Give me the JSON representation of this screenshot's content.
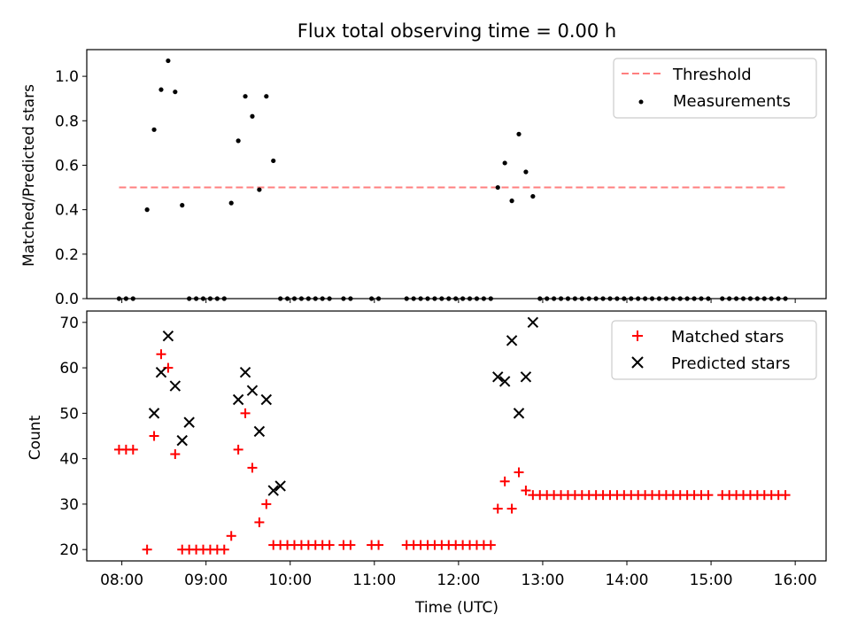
{
  "figure": {
    "title": "Flux total observing time = 0.00 h"
  },
  "chart_data": [
    {
      "type": "scatter",
      "ylabel": "Matched/Predicted stars",
      "xlabel": "",
      "ylim": [
        0,
        1.12
      ],
      "yticks": [
        0.0,
        0.2,
        0.4,
        0.6,
        0.8,
        1.0
      ],
      "ytick_labels": [
        "0.0",
        "0.2",
        "0.4",
        "0.6",
        "0.8",
        "1.0"
      ],
      "legend_position": "top-right",
      "threshold": {
        "name": "Threshold",
        "value": 0.5,
        "x_start": "07:58",
        "x_end": "15:55",
        "color": "#ff7f7f",
        "style": "dashed"
      },
      "series": [
        {
          "name": "Measurements",
          "marker": "dot",
          "color": "#000000",
          "x": [
            "07:58",
            "08:03",
            "08:08",
            "08:13",
            "08:18",
            "08:23",
            "08:28",
            "08:33",
            "08:38",
            "08:43",
            "08:48",
            "08:53",
            "08:58",
            "09:03",
            "09:08",
            "09:13",
            "09:18",
            "09:23",
            "09:28",
            "09:33",
            "09:38",
            "09:43",
            "09:48",
            "09:53",
            "09:58",
            "10:03",
            "10:08",
            "10:13",
            "10:18",
            "10:23",
            "10:28",
            "10:33",
            "10:38",
            "10:43",
            "10:48",
            "10:53",
            "10:58",
            "11:03",
            "11:08",
            "11:13",
            "11:18",
            "11:23",
            "11:28",
            "11:33",
            "11:38",
            "11:43",
            "11:48",
            "11:53",
            "11:58",
            "12:03",
            "12:08",
            "12:13",
            "12:18",
            "12:23",
            "12:28",
            "12:33",
            "12:38",
            "12:43",
            "12:48",
            "12:53",
            "12:58",
            "13:03",
            "13:08",
            "13:13",
            "13:18",
            "13:23",
            "13:28",
            "13:33",
            "13:38",
            "13:43",
            "13:48",
            "13:53",
            "13:58",
            "14:03",
            "14:08",
            "14:13",
            "14:18",
            "14:23",
            "14:28",
            "14:33",
            "14:38",
            "14:43",
            "14:48",
            "14:53",
            "14:58",
            "15:03",
            "15:08",
            "15:13",
            "15:18",
            "15:23",
            "15:28",
            "15:33",
            "15:38",
            "15:43",
            "15:48",
            "15:53"
          ],
          "y": [
            0,
            0,
            0,
            null,
            0.4,
            0.76,
            0.94,
            1.07,
            0.93,
            0.42,
            0,
            0,
            0,
            0,
            0,
            0,
            0.43,
            0.71,
            0.91,
            0.82,
            0.49,
            0.91,
            0.62,
            0,
            0,
            0,
            0,
            0,
            0,
            0,
            0,
            null,
            0,
            0,
            null,
            null,
            0,
            0,
            null,
            null,
            null,
            0,
            0,
            0,
            0,
            0,
            0,
            0,
            0,
            0,
            0,
            0,
            0,
            0,
            0.5,
            0.61,
            0.44,
            0.74,
            0.57,
            0.46,
            0,
            0,
            0,
            0,
            0,
            0,
            0,
            0,
            0,
            0,
            0,
            0,
            0,
            0,
            0,
            0,
            0,
            0,
            0,
            0,
            0,
            0,
            0,
            0,
            0,
            null,
            0,
            0,
            0,
            0,
            0,
            0,
            0,
            0,
            0,
            0
          ]
        }
      ]
    },
    {
      "type": "scatter",
      "xlabel": "Time (UTC)",
      "ylabel": "Count",
      "ylim": [
        17.5,
        72.5
      ],
      "yticks": [
        20,
        30,
        40,
        50,
        60,
        70
      ],
      "ytick_labels": [
        "20",
        "30",
        "40",
        "50",
        "60",
        "70"
      ],
      "x_range": [
        "07:35",
        "16:22"
      ],
      "xticks": [
        "08:00",
        "09:00",
        "10:00",
        "11:00",
        "12:00",
        "13:00",
        "14:00",
        "15:00",
        "16:00"
      ],
      "legend_position": "top-right",
      "series": [
        {
          "name": "Matched stars",
          "marker": "plus",
          "color": "#ff0000",
          "x": [
            "07:58",
            "08:03",
            "08:08",
            "08:13",
            "08:18",
            "08:23",
            "08:28",
            "08:33",
            "08:38",
            "08:43",
            "08:48",
            "08:53",
            "08:58",
            "09:03",
            "09:08",
            "09:13",
            "09:18",
            "09:23",
            "09:28",
            "09:33",
            "09:38",
            "09:43",
            "09:48",
            "09:53",
            "09:58",
            "10:03",
            "10:08",
            "10:13",
            "10:18",
            "10:23",
            "10:28",
            "10:33",
            "10:38",
            "10:43",
            "10:48",
            "10:53",
            "10:58",
            "11:03",
            "11:08",
            "11:13",
            "11:18",
            "11:23",
            "11:28",
            "11:33",
            "11:38",
            "11:43",
            "11:48",
            "11:53",
            "11:58",
            "12:03",
            "12:08",
            "12:13",
            "12:18",
            "12:23",
            "12:28",
            "12:33",
            "12:38",
            "12:43",
            "12:48",
            "12:53",
            "12:58",
            "13:03",
            "13:08",
            "13:13",
            "13:18",
            "13:23",
            "13:28",
            "13:33",
            "13:38",
            "13:43",
            "13:48",
            "13:53",
            "13:58",
            "14:03",
            "14:08",
            "14:13",
            "14:18",
            "14:23",
            "14:28",
            "14:33",
            "14:38",
            "14:43",
            "14:48",
            "14:53",
            "14:58",
            "15:03",
            "15:08",
            "15:13",
            "15:18",
            "15:23",
            "15:28",
            "15:33",
            "15:38",
            "15:43",
            "15:48",
            "15:53"
          ],
          "y": [
            42,
            42,
            42,
            null,
            20,
            45,
            63,
            60,
            41,
            20,
            20,
            20,
            20,
            20,
            20,
            20,
            23,
            42,
            50,
            38,
            26,
            30,
            21,
            21,
            21,
            21,
            21,
            21,
            21,
            21,
            21,
            null,
            21,
            21,
            null,
            null,
            21,
            21,
            null,
            null,
            null,
            21,
            21,
            21,
            21,
            21,
            21,
            21,
            21,
            21,
            21,
            21,
            21,
            21,
            29,
            35,
            29,
            37,
            33,
            32,
            32,
            32,
            32,
            32,
            32,
            32,
            32,
            32,
            32,
            32,
            32,
            32,
            32,
            32,
            32,
            32,
            32,
            32,
            32,
            32,
            32,
            32,
            32,
            32,
            32,
            null,
            32,
            32,
            32,
            32,
            32,
            32,
            32,
            32,
            32,
            32
          ]
        },
        {
          "name": "Predicted stars",
          "marker": "x",
          "color": "#000000",
          "x": [
            "08:23",
            "08:28",
            "08:33",
            "08:38",
            "08:43",
            "08:48",
            "09:23",
            "09:28",
            "09:33",
            "09:38",
            "09:43",
            "09:48",
            "09:53",
            "12:28",
            "12:33",
            "12:38",
            "12:43",
            "12:48",
            "12:53"
          ],
          "y": [
            50,
            59,
            67,
            56,
            44,
            48,
            53,
            59,
            55,
            46,
            53,
            33,
            34,
            58,
            57,
            66,
            50,
            58,
            70
          ]
        }
      ]
    }
  ]
}
